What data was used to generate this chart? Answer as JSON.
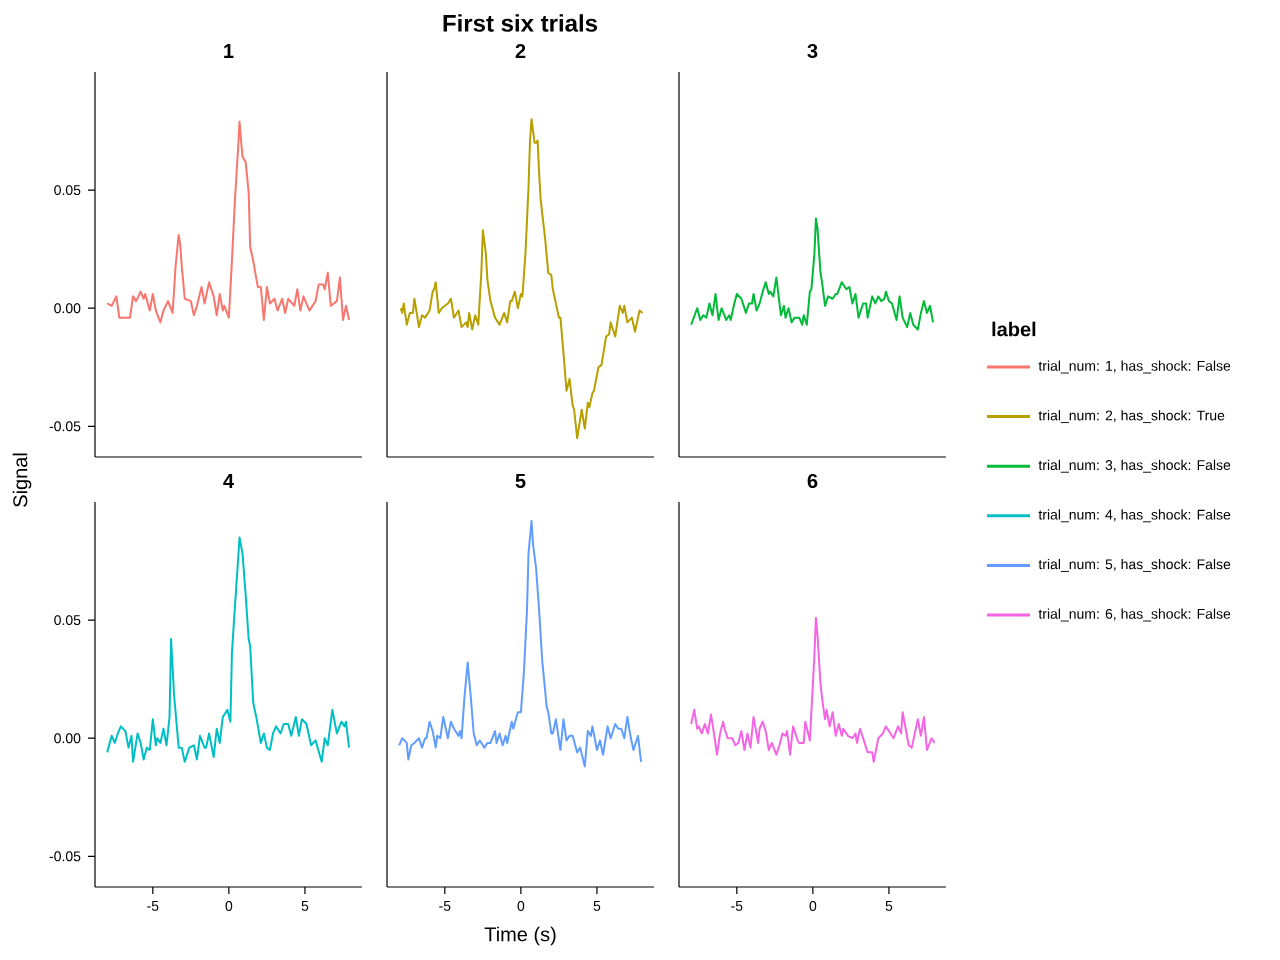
{
  "chart_data": [
    {
      "type": "line",
      "subtitle": "1",
      "legend": "right",
      "tick_labels": "y",
      "xlim": [
        -8.8,
        8.75
      ],
      "ylim": [
        -0.063,
        0.1
      ],
      "yticks": [
        {
          "value": -0.05,
          "label": "-0.05"
        },
        {
          "value": 0,
          "label": "0.00"
        },
        {
          "value": 0.05,
          "label": "0.05"
        }
      ],
      "x": [
        -8.0,
        -7.7,
        -7.4,
        -7.2,
        -6.8,
        -6.5,
        -6.3,
        -6.1,
        -5.8,
        -5.6,
        -5.5,
        -5.2,
        -5.0,
        -4.8,
        -4.5,
        -4.3,
        -4.0,
        -3.7,
        -3.5,
        -3.3,
        -3.2,
        -3.1,
        -2.9,
        -2.5,
        -2.3,
        -2.1,
        -1.8,
        -1.6,
        -1.3,
        -1.0,
        -0.8,
        -0.6,
        -0.4,
        -0.3,
        0.0,
        0.2,
        0.4,
        0.6,
        0.7,
        0.8,
        0.9,
        1.1,
        1.3,
        1.4,
        1.6,
        1.9,
        2.1,
        2.3,
        2.5,
        2.7,
        3.0,
        3.2,
        3.5,
        3.7,
        3.9,
        4.3,
        4.5,
        4.7,
        4.9,
        5.3,
        5.7,
        5.9,
        6.2,
        6.3,
        6.5,
        6.7,
        7.1,
        7.3,
        7.5,
        7.7,
        7.9
      ],
      "series": [
        {
          "name": "trial_num: 1, has_shock: False",
          "color": "#f8766d",
          "values": [
            0.002,
            0.001,
            0.005,
            -0.004,
            -0.004,
            -0.004,
            0.005,
            0.003,
            0.007,
            0.004,
            0.006,
            -0.001,
            0.006,
            -0.001,
            -0.006,
            -0.001,
            0.003,
            -0.002,
            0.018,
            0.031,
            0.027,
            0.018,
            0.004,
            0.003,
            -0.003,
            0.001,
            0.009,
            0.002,
            0.011,
            0.005,
            -0.003,
            0.006,
            -0.001,
            0.001,
            -0.004,
            0.02,
            0.046,
            0.067,
            0.079,
            0.071,
            0.064,
            0.062,
            0.049,
            0.026,
            0.02,
            0.009,
            0.009,
            -0.005,
            0.009,
            0.002,
            0.004,
            -0.001,
            0.004,
            -0.002,
            0.004,
            0.001,
            0.008,
            -0.001,
            0.005,
            -0.001,
            0.003,
            0.01,
            0.01,
            0.008,
            0.015,
            0.001,
            0.003,
            0.013,
            -0.005,
            0.001,
            -0.005
          ]
        }
      ]
    },
    {
      "type": "line",
      "title": "First six trials",
      "subtitle": "2",
      "legend": "right",
      "tick_labels": false,
      "xlim": [
        -8.8,
        8.75
      ],
      "ylim": [
        -0.063,
        0.1
      ],
      "x": [
        -7.9,
        -7.8,
        -7.7,
        -7.5,
        -7.3,
        -7.1,
        -7.0,
        -6.7,
        -6.5,
        -6.3,
        -6.1,
        -6.0,
        -5.8,
        -5.7,
        -5.6,
        -5.4,
        -5.2,
        -5.0,
        -4.8,
        -4.6,
        -4.4,
        -4.1,
        -3.9,
        -3.6,
        -3.5,
        -3.4,
        -3.2,
        -3.0,
        -2.8,
        -2.6,
        -2.5,
        -2.3,
        -2.2,
        -2.0,
        -1.7,
        -1.4,
        -1.1,
        -0.9,
        -0.7,
        -0.6,
        -0.4,
        -0.2,
        0.0,
        0.1,
        0.3,
        0.5,
        0.6,
        0.7,
        0.9,
        1.0,
        1.1,
        1.2,
        1.3,
        1.6,
        1.8,
        2.0,
        2.1,
        2.3,
        2.5,
        2.6,
        2.8,
        3.0,
        3.2,
        3.4,
        3.5,
        3.7,
        4.0,
        4.2,
        4.4,
        4.5,
        4.7,
        4.8,
        5.1,
        5.3,
        5.6,
        5.8,
        5.9,
        6.2,
        6.5,
        6.7,
        6.8,
        7.0,
        7.3,
        7.5,
        7.8,
        8.0
      ],
      "series": [
        {
          "name": "trial_num: 2, has_shock: True",
          "color": "#b79f00",
          "values": [
            0.0,
            -0.002,
            0.002,
            -0.007,
            -0.002,
            -0.002,
            0.004,
            -0.008,
            -0.003,
            -0.004,
            -0.002,
            -0.001,
            0.007,
            0.008,
            0.011,
            -0.002,
            0.0,
            0.001,
            0.002,
            0.004,
            -0.004,
            -0.001,
            -0.008,
            -0.006,
            -0.008,
            -0.002,
            -0.009,
            -0.003,
            -0.007,
            0.015,
            0.033,
            0.023,
            0.012,
            0.003,
            -0.004,
            -0.007,
            -0.002,
            -0.006,
            0.003,
            0.003,
            0.007,
            0.0,
            0.006,
            0.005,
            0.023,
            0.051,
            0.071,
            0.08,
            0.07,
            0.07,
            0.071,
            0.057,
            0.046,
            0.029,
            0.015,
            0.014,
            0.008,
            0.002,
            -0.004,
            -0.004,
            -0.019,
            -0.035,
            -0.03,
            -0.041,
            -0.043,
            -0.055,
            -0.043,
            -0.051,
            -0.04,
            -0.042,
            -0.036,
            -0.035,
            -0.025,
            -0.024,
            -0.012,
            -0.011,
            -0.006,
            -0.012,
            0.001,
            -0.002,
            0.001,
            -0.006,
            -0.004,
            -0.01,
            -0.001,
            -0.002
          ]
        }
      ]
    },
    {
      "type": "line",
      "subtitle": "3",
      "legend": "right",
      "legend_title": "label",
      "tick_labels": false,
      "xlim": [
        -8.8,
        8.75
      ],
      "ylim": [
        -0.063,
        0.1
      ],
      "x": [
        -8.0,
        -7.6,
        -7.4,
        -7.2,
        -7.0,
        -6.8,
        -6.6,
        -6.4,
        -6.2,
        -6.0,
        -5.7,
        -5.5,
        -5.4,
        -5.2,
        -5.0,
        -4.7,
        -4.4,
        -4.2,
        -4.0,
        -3.9,
        -3.7,
        -3.5,
        -3.3,
        -3.1,
        -2.9,
        -2.8,
        -2.6,
        -2.4,
        -2.1,
        -1.9,
        -1.8,
        -1.6,
        -1.4,
        -1.2,
        -0.9,
        -0.7,
        -0.6,
        -0.4,
        -0.2,
        -0.1,
        0.1,
        0.2,
        0.3,
        0.5,
        0.6,
        0.8,
        1.0,
        1.3,
        1.5,
        1.6,
        1.9,
        2.2,
        2.4,
        2.6,
        2.8,
        3.0,
        3.3,
        3.5,
        3.6,
        3.9,
        4.1,
        4.3,
        4.5,
        4.7,
        4.8,
        5.0,
        5.2,
        5.5,
        5.7,
        5.9,
        6.2,
        6.4,
        6.6,
        6.9,
        7.1,
        7.3,
        7.5,
        7.7,
        7.9
      ],
      "series": [
        {
          "name": "trial_num: 3, has_shock: False",
          "color": "#00ba38",
          "values": [
            -0.007,
            0.0,
            -0.005,
            -0.003,
            -0.004,
            0.002,
            -0.003,
            0.006,
            -0.005,
            0.0,
            -0.005,
            -0.003,
            -0.005,
            0.001,
            0.006,
            0.004,
            -0.002,
            0.002,
            0.002,
            0.006,
            -0.001,
            0.002,
            0.007,
            0.011,
            0.006,
            0.007,
            0.005,
            0.013,
            -0.003,
            0.001,
            -0.004,
            0.0,
            -0.006,
            -0.004,
            -0.004,
            -0.007,
            -0.003,
            -0.007,
            0.007,
            0.008,
            0.023,
            0.038,
            0.034,
            0.015,
            0.011,
            0.001,
            0.005,
            0.004,
            0.006,
            0.006,
            0.011,
            0.008,
            0.009,
            0.002,
            0.006,
            -0.004,
            0.002,
            0.002,
            -0.004,
            0.005,
            0.002,
            0.005,
            0.003,
            0.004,
            0.007,
            0.003,
            0.002,
            -0.005,
            0.005,
            -0.004,
            -0.008,
            -0.002,
            -0.007,
            -0.009,
            -0.002,
            0.003,
            -0.002,
            0.001,
            -0.006
          ]
        }
      ]
    },
    {
      "type": "line",
      "subtitle": "4",
      "ylabel": "Signal",
      "legend": "right",
      "xlim": [
        -8.8,
        8.75
      ],
      "ylim": [
        -0.063,
        0.1
      ],
      "xticks": [
        -5,
        0,
        5
      ],
      "yticks": [
        {
          "value": -0.05,
          "label": "-0.05"
        },
        {
          "value": 0,
          "label": "0.00"
        },
        {
          "value": 0.05,
          "label": "0.05"
        }
      ],
      "x": [
        -8.0,
        -7.7,
        -7.5,
        -7.3,
        -7.1,
        -6.8,
        -6.6,
        -6.4,
        -6.3,
        -6.0,
        -5.8,
        -5.6,
        -5.4,
        -5.2,
        -5.0,
        -4.8,
        -4.7,
        -4.5,
        -4.3,
        -4.1,
        -3.9,
        -3.8,
        -3.6,
        -3.3,
        -3.1,
        -2.9,
        -2.6,
        -2.3,
        -2.1,
        -1.9,
        -1.6,
        -1.5,
        -1.3,
        -1.0,
        -0.8,
        -0.6,
        -0.4,
        -0.2,
        -0.1,
        0.1,
        0.2,
        0.4,
        0.6,
        0.7,
        0.9,
        1.1,
        1.3,
        1.4,
        1.6,
        1.8,
        2.1,
        2.3,
        2.5,
        2.7,
        2.9,
        3.1,
        3.4,
        3.6,
        3.9,
        4.1,
        4.4,
        4.6,
        4.8,
        5.1,
        5.4,
        5.7,
        6.1,
        6.3,
        6.5,
        6.8,
        7.1,
        7.4,
        7.6,
        7.7,
        7.9
      ],
      "series": [
        {
          "name": "trial_num: 4, has_shock: False",
          "color": "#00bfc4",
          "values": [
            -0.006,
            0.001,
            -0.002,
            0.002,
            0.005,
            0.003,
            -0.004,
            0.001,
            -0.01,
            0.002,
            -0.002,
            -0.009,
            -0.004,
            -0.005,
            0.008,
            -0.003,
            0.0,
            -0.002,
            0.004,
            -0.003,
            0.009,
            0.042,
            0.018,
            -0.004,
            -0.004,
            -0.01,
            -0.004,
            -0.003,
            -0.009,
            0.001,
            -0.004,
            -0.004,
            0.002,
            -0.008,
            0.004,
            -0.002,
            0.009,
            0.011,
            0.012,
            0.007,
            0.036,
            0.056,
            0.075,
            0.085,
            0.078,
            0.061,
            0.042,
            0.039,
            0.015,
            0.009,
            -0.002,
            0.002,
            -0.004,
            -0.005,
            0.002,
            0.005,
            0.002,
            0.006,
            0.006,
            0.001,
            0.009,
            0.001,
            0.008,
            0.006,
            -0.003,
            -0.001,
            -0.01,
            0.0,
            -0.003,
            0.012,
            0.002,
            0.007,
            0.005,
            0.007,
            -0.004
          ]
        }
      ]
    },
    {
      "type": "line",
      "subtitle": "5",
      "xlabel": "Time (s)",
      "legend": "right",
      "tick_labels": "x",
      "xlim": [
        -8.8,
        8.75
      ],
      "ylim": [
        -0.063,
        0.1
      ],
      "xticks": [
        -5,
        0,
        5
      ],
      "x": [
        -8.0,
        -7.8,
        -7.5,
        -7.4,
        -7.2,
        -7.0,
        -6.7,
        -6.5,
        -6.3,
        -6.2,
        -6.0,
        -5.8,
        -5.6,
        -5.5,
        -5.3,
        -5.1,
        -4.8,
        -4.6,
        -4.4,
        -4.1,
        -4.0,
        -3.9,
        -3.7,
        -3.5,
        -3.3,
        -3.1,
        -2.9,
        -2.7,
        -2.4,
        -2.2,
        -2.0,
        -1.7,
        -1.6,
        -1.4,
        -1.2,
        -1.0,
        -0.9,
        -0.6,
        -0.5,
        -0.2,
        0.0,
        0.2,
        0.4,
        0.5,
        0.7,
        0.8,
        1.0,
        1.2,
        1.4,
        1.7,
        1.8,
        2.0,
        2.1,
        2.3,
        2.6,
        2.8,
        3.0,
        3.2,
        3.4,
        3.7,
        3.9,
        4.2,
        4.4,
        4.6,
        4.7,
        5.0,
        5.2,
        5.4,
        5.7,
        5.9,
        6.2,
        6.4,
        6.6,
        6.8,
        7.0,
        7.2,
        7.4,
        7.7,
        7.9
      ],
      "series": [
        {
          "name": "trial_num: 5, has_shock: False",
          "color": "#619cff",
          "values": [
            -0.003,
            0.0,
            -0.002,
            -0.009,
            -0.003,
            -0.002,
            0.0,
            -0.004,
            0.0,
            0.0,
            0.007,
            0.003,
            -0.004,
            0.001,
            0.0,
            0.009,
            0.0,
            0.007,
            0.004,
            0.001,
            0.003,
            0.0,
            0.018,
            0.032,
            0.018,
            0.002,
            -0.003,
            -0.001,
            -0.004,
            -0.002,
            -0.002,
            0.003,
            -0.002,
            0.002,
            -0.003,
            0.001,
            -0.002,
            0.007,
            0.004,
            0.011,
            0.011,
            0.028,
            0.054,
            0.078,
            0.092,
            0.082,
            0.072,
            0.054,
            0.033,
            0.013,
            0.011,
            0.002,
            0.002,
            0.008,
            -0.005,
            0.008,
            -0.001,
            0.001,
            0.001,
            -0.006,
            -0.004,
            -0.012,
            0.003,
            0.001,
            0.005,
            -0.005,
            -0.001,
            -0.007,
            0.005,
            0.0,
            0.006,
            0.004,
            0.004,
            0.0,
            0.009,
            0.001,
            -0.005,
            0.001,
            -0.01
          ]
        }
      ]
    },
    {
      "type": "line",
      "subtitle": "6",
      "legend": "right",
      "tick_labels": "x",
      "xlim": [
        -8.8,
        8.75
      ],
      "ylim": [
        -0.063,
        0.1
      ],
      "xticks": [
        -5,
        0,
        5
      ],
      "x": [
        -8.0,
        -7.8,
        -7.6,
        -7.5,
        -7.3,
        -7.1,
        -6.9,
        -6.7,
        -6.5,
        -6.3,
        -6.1,
        -5.9,
        -5.8,
        -5.6,
        -5.3,
        -5.1,
        -4.9,
        -4.7,
        -4.5,
        -4.3,
        -4.1,
        -3.9,
        -3.6,
        -3.5,
        -3.3,
        -3.1,
        -2.9,
        -2.7,
        -2.4,
        -2.2,
        -2.0,
        -1.8,
        -1.7,
        -1.5,
        -1.3,
        -1.0,
        -0.9,
        -0.6,
        -0.5,
        -0.2,
        -0.1,
        0.1,
        0.2,
        0.3,
        0.5,
        0.6,
        0.8,
        0.9,
        1.1,
        1.3,
        1.5,
        1.7,
        1.9,
        2.0,
        2.3,
        2.6,
        2.8,
        2.9,
        3.1,
        3.4,
        3.6,
        3.9,
        4.0,
        4.3,
        4.6,
        4.8,
        5.1,
        5.3,
        5.6,
        5.8,
        5.9,
        6.3,
        6.5,
        6.9,
        7.1,
        7.3,
        7.5,
        7.8,
        8.0
      ],
      "series": [
        {
          "name": "trial_num: 6, has_shock: False",
          "color": "#f564e3",
          "values": [
            0.006,
            0.012,
            0.004,
            0.005,
            0.002,
            0.006,
            0.002,
            0.01,
            0.002,
            -0.007,
            0.002,
            0.007,
            0.004,
            0.0,
            0.0,
            -0.003,
            -0.002,
            0.003,
            -0.005,
            0.002,
            -0.004,
            0.009,
            -0.002,
            0.004,
            0.007,
            0.003,
            -0.005,
            -0.002,
            -0.007,
            -0.003,
            0.002,
            0.001,
            0.003,
            -0.007,
            0.005,
            -0.001,
            -0.002,
            -0.002,
            0.007,
            -0.001,
            0.011,
            0.035,
            0.051,
            0.044,
            0.023,
            0.017,
            0.008,
            0.012,
            0.005,
            0.011,
            0.001,
            0.006,
            0.001,
            0.004,
            0.001,
            0.0,
            0.002,
            -0.002,
            0.004,
            -0.002,
            -0.006,
            -0.006,
            -0.01,
            0.0,
            0.002,
            0.005,
            0.002,
            0.0,
            0.005,
            0.002,
            0.011,
            -0.003,
            -0.004,
            0.008,
            0.001,
            0.009,
            -0.005,
            0.0,
            -0.002
          ]
        }
      ]
    }
  ]
}
